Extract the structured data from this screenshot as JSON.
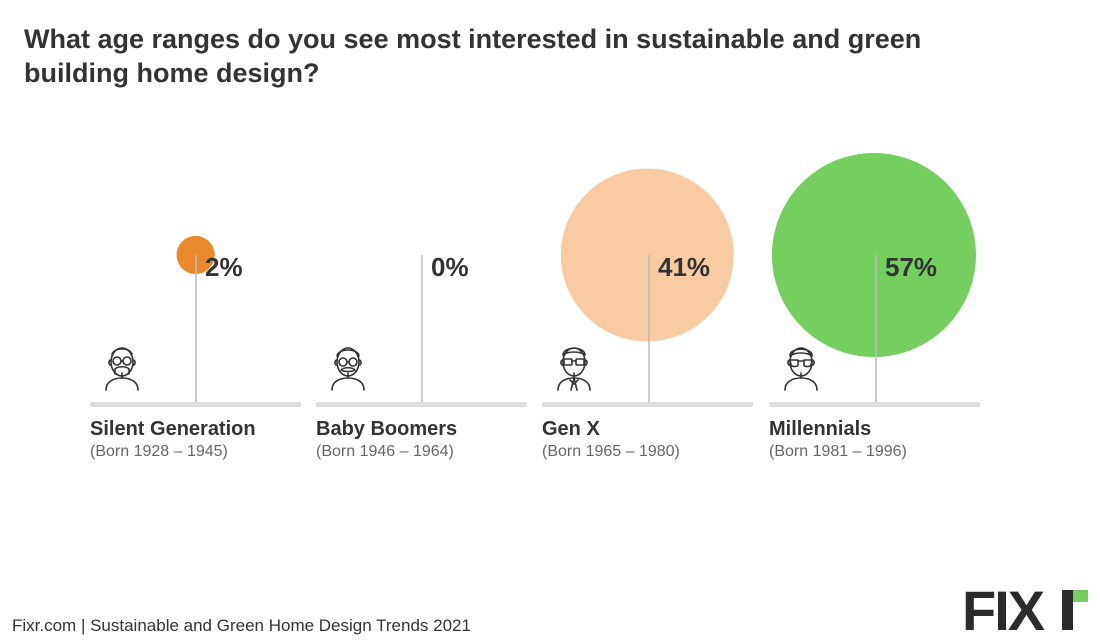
{
  "title": "What age ranges do you see most interested in sustainable and green building home design?",
  "chart_data": {
    "type": "bubble",
    "categories": [
      "Silent Generation",
      "Baby Boomers",
      "Gen X",
      "Millennials"
    ],
    "subtitles": [
      "(Born 1928 – 1945)",
      "(Born 1946 – 1964)",
      "(Born 1965 – 1980)",
      "(Born 1981 – 1996)"
    ],
    "values": [
      2,
      0,
      41,
      57
    ],
    "value_labels": [
      "2%",
      "0%",
      "41%",
      "57%"
    ],
    "icons": [
      "old-man-with-glasses-and-mustache-icon",
      "man-with-glasses-and-mustache-icon",
      "man-with-glasses-and-suit-icon",
      "man-with-sunglasses-icon"
    ],
    "colors": [
      "#e8892c",
      "#cccccc",
      "#f8cba2",
      "#74cf5f"
    ]
  },
  "footer": {
    "source": "Fixr.com | Sustainable and Green Home Design Trends 2021",
    "logo_text": "FIXR"
  },
  "colors": {
    "title": "#333333",
    "stem": "#bbbbbb",
    "baseline": "#dddddd",
    "logo": "#2b2b2b",
    "logo_accent": "#74cf5f"
  }
}
